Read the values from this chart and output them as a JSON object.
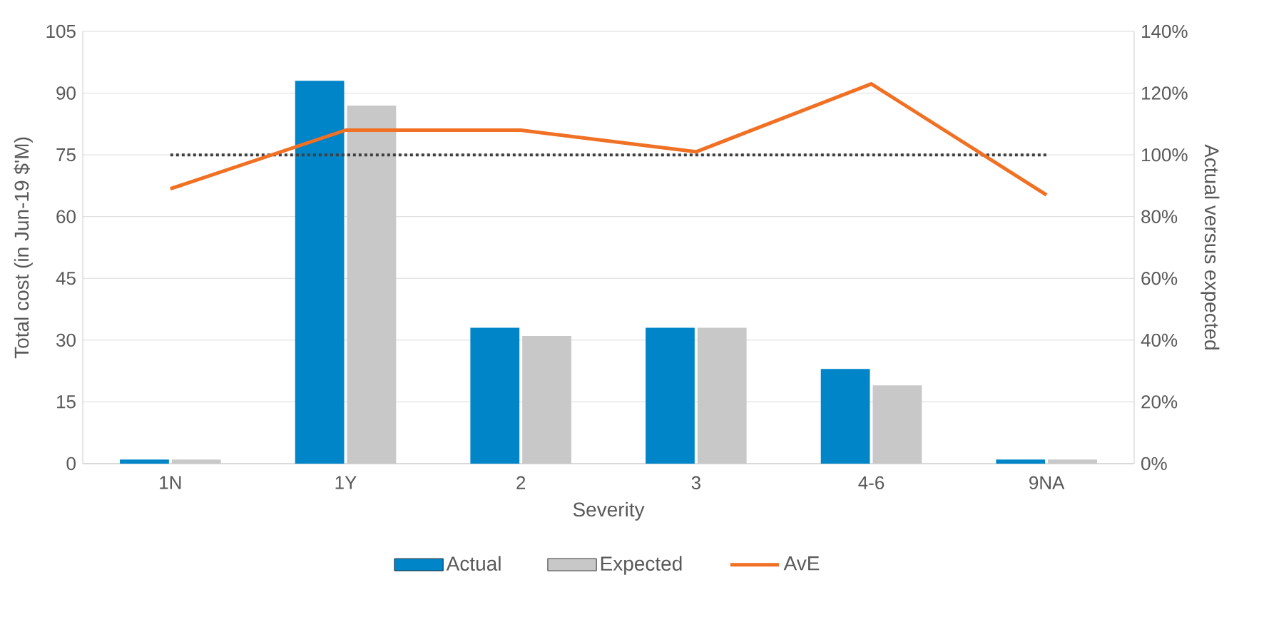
{
  "chart_data": {
    "type": "bar",
    "xlabel": "Severity",
    "ylabel": "Total cost (in Jun-19 $'M)",
    "y2label": "Actual versus expected",
    "categories": [
      "1N",
      "1Y",
      "2",
      "3",
      "4-6",
      "9NA"
    ],
    "series": [
      {
        "name": "Actual",
        "color": "#0085c8",
        "values": [
          1,
          93,
          33,
          33,
          23,
          1
        ]
      },
      {
        "name": "Expected",
        "color": "#c8c8c8",
        "values": [
          1,
          87,
          31,
          33,
          19,
          1
        ]
      },
      {
        "name": "AvE",
        "type": "line",
        "axis": "y2",
        "color": "#f07024",
        "values": [
          89,
          108,
          108,
          101,
          123,
          87
        ]
      }
    ],
    "ylim": [
      0,
      105
    ],
    "yticks": [
      0,
      15,
      30,
      45,
      60,
      75,
      90,
      105
    ],
    "y2lim": [
      0,
      140
    ],
    "y2ticks": [
      {
        "value": 0,
        "label": "0%"
      },
      {
        "value": 20,
        "label": "20%"
      },
      {
        "value": 40,
        "label": "40%"
      },
      {
        "value": 60,
        "label": "60%"
      },
      {
        "value": 80,
        "label": "80%"
      },
      {
        "value": 100,
        "label": "100%"
      },
      {
        "value": 120,
        "label": "120%"
      },
      {
        "value": 140,
        "label": "140%"
      }
    ],
    "ref_lines": [
      {
        "axis": "y2",
        "value": 100,
        "color": "#404040",
        "line_style": "dotted"
      }
    ],
    "grid": "y",
    "legend": "bottom",
    "marker": "none"
  }
}
